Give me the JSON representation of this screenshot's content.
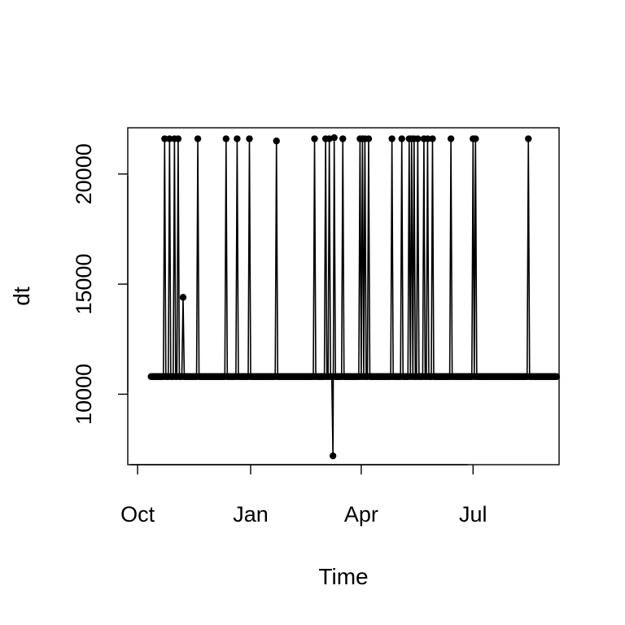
{
  "chart_data": {
    "type": "line",
    "xlabel": "Time",
    "ylabel": "dt",
    "x_ticks": [
      "Oct",
      "Jan",
      "Apr",
      "Jul"
    ],
    "y_ticks": [
      10000,
      15000,
      20000
    ],
    "xlim": [
      "2017-09-23",
      "2018-09-09"
    ],
    "ylim": [
      6800,
      22100
    ],
    "baseline_value": 10800,
    "baseline_range": [
      "2017-10-12",
      "2018-09-07"
    ],
    "spikes": [
      {
        "date": "2017-10-23",
        "value": 21600
      },
      {
        "date": "2017-10-27",
        "value": 21600
      },
      {
        "date": "2017-10-31",
        "value": 21600
      },
      {
        "date": "2017-11-03",
        "value": 21600
      },
      {
        "date": "2017-11-07",
        "value": 14400
      },
      {
        "date": "2017-11-19",
        "value": 21600
      },
      {
        "date": "2017-12-12",
        "value": 21600
      },
      {
        "date": "2017-12-21",
        "value": 21600
      },
      {
        "date": "2017-12-31",
        "value": 21600
      },
      {
        "date": "2018-01-22",
        "value": 21500
      },
      {
        "date": "2018-02-22",
        "value": 21600
      },
      {
        "date": "2018-03-03",
        "value": 21600
      },
      {
        "date": "2018-03-06",
        "value": 21600
      },
      {
        "date": "2018-03-09",
        "value": 7200
      },
      {
        "date": "2018-03-10",
        "value": 21650
      },
      {
        "date": "2018-03-17",
        "value": 21600
      },
      {
        "date": "2018-03-31",
        "value": 21600
      },
      {
        "date": "2018-04-02",
        "value": 21600
      },
      {
        "date": "2018-04-04",
        "value": 21600
      },
      {
        "date": "2018-04-07",
        "value": 21600
      },
      {
        "date": "2018-04-26",
        "value": 21600
      },
      {
        "date": "2018-05-04",
        "value": 21600
      },
      {
        "date": "2018-05-10",
        "value": 21600
      },
      {
        "date": "2018-05-12",
        "value": 21600
      },
      {
        "date": "2018-05-14",
        "value": 21600
      },
      {
        "date": "2018-05-17",
        "value": 21600
      },
      {
        "date": "2018-05-22",
        "value": 21600
      },
      {
        "date": "2018-05-25",
        "value": 21600
      },
      {
        "date": "2018-05-29",
        "value": 21600
      },
      {
        "date": "2018-06-13",
        "value": 21600
      },
      {
        "date": "2018-07-01",
        "value": 21600
      },
      {
        "date": "2018-07-03",
        "value": 21600
      },
      {
        "date": "2018-08-15",
        "value": 21600
      }
    ],
    "grid": false,
    "legend": "none"
  }
}
